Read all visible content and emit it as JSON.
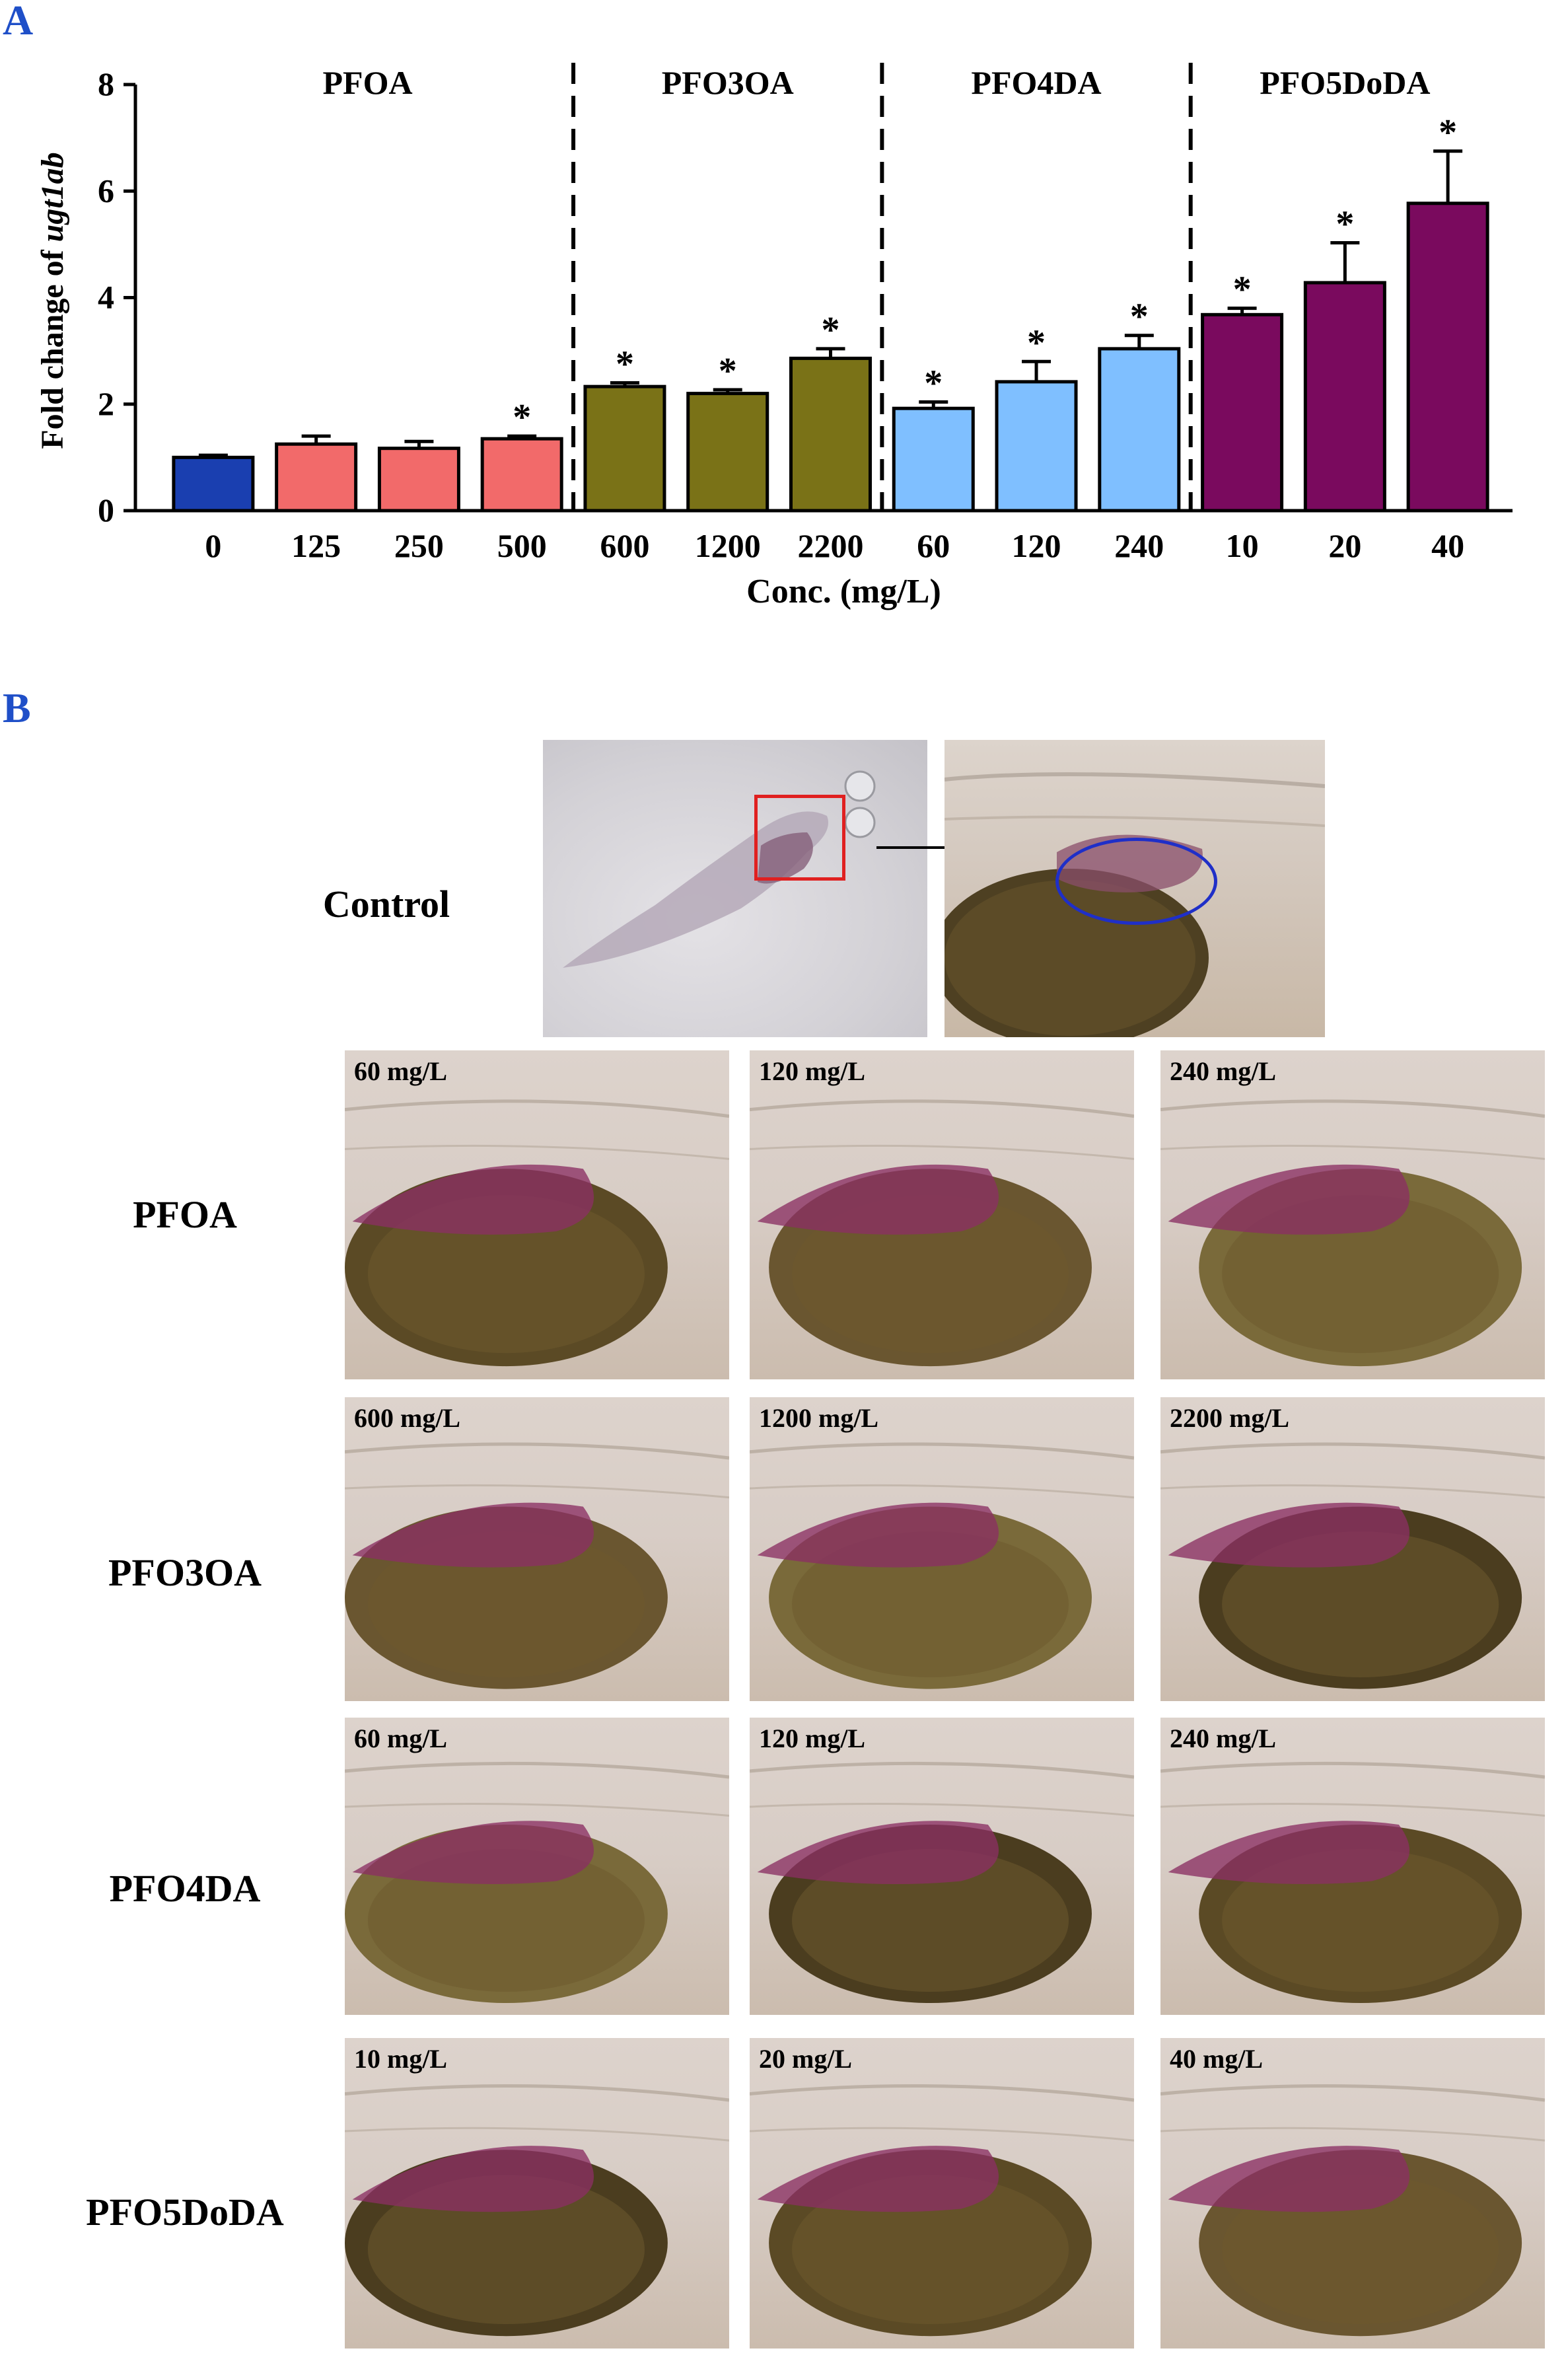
{
  "panel_labels": {
    "a": "A",
    "b": "B"
  },
  "chart_data": {
    "type": "bar",
    "ylabel_prefix": "Fold change of ",
    "ylabel_gene": "ugt1ab",
    "xlabel": "Conc. (mg/L)",
    "ylim": [
      0,
      8
    ],
    "yticks": [
      "0",
      "2",
      "4",
      "6",
      "8"
    ],
    "groups": [
      {
        "name": "PFOA",
        "color": "#f26a6a",
        "categories": [
          "0",
          "125",
          "250",
          "500"
        ],
        "values": [
          1.0,
          1.25,
          1.17,
          1.35
        ],
        "errors": [
          0.04,
          0.15,
          0.13,
          0.05
        ],
        "significant": [
          false,
          false,
          false,
          true
        ],
        "first_color": "#1a3fb0"
      },
      {
        "name": "PFO3OA",
        "color": "#7a7217",
        "categories": [
          "600",
          "1200",
          "2200"
        ],
        "values": [
          2.33,
          2.2,
          2.86
        ],
        "errors": [
          0.07,
          0.07,
          0.18
        ],
        "significant": [
          true,
          true,
          true
        ]
      },
      {
        "name": "PFO4DA",
        "color": "#7fbfff",
        "categories": [
          "60",
          "120",
          "240"
        ],
        "values": [
          1.92,
          2.42,
          3.04
        ],
        "errors": [
          0.12,
          0.38,
          0.25
        ],
        "significant": [
          true,
          true,
          true
        ]
      },
      {
        "name": "PFO5DoDA",
        "color": "#7a0a5e",
        "categories": [
          "10",
          "20",
          "40"
        ],
        "values": [
          3.68,
          4.28,
          5.77
        ],
        "errors": [
          0.12,
          0.75,
          0.98
        ],
        "significant": [
          true,
          true,
          true
        ]
      }
    ],
    "significance_marker": "*",
    "grid": false
  },
  "panel_b": {
    "control_label": "Control",
    "rows": [
      {
        "label": "PFOA",
        "concs": [
          "60 mg/L",
          "120 mg/L",
          "240 mg/L"
        ]
      },
      {
        "label": "PFO3OA",
        "concs": [
          "600 mg/L",
          "1200 mg/L",
          "2200 mg/L"
        ]
      },
      {
        "label": "PFO4DA",
        "concs": [
          "60 mg/L",
          "120 mg/L",
          "240 mg/L"
        ]
      },
      {
        "label": "PFO5DoDA",
        "concs": [
          "10 mg/L",
          "20 mg/L",
          "40 mg/L"
        ]
      }
    ],
    "colors": {
      "stain": "#8a2f63",
      "yolk": "#6e5a2c",
      "tissue": "#d8cdc6",
      "highlight_box": "#e02020",
      "highlight_ellipse": "#1f2fc8"
    }
  }
}
